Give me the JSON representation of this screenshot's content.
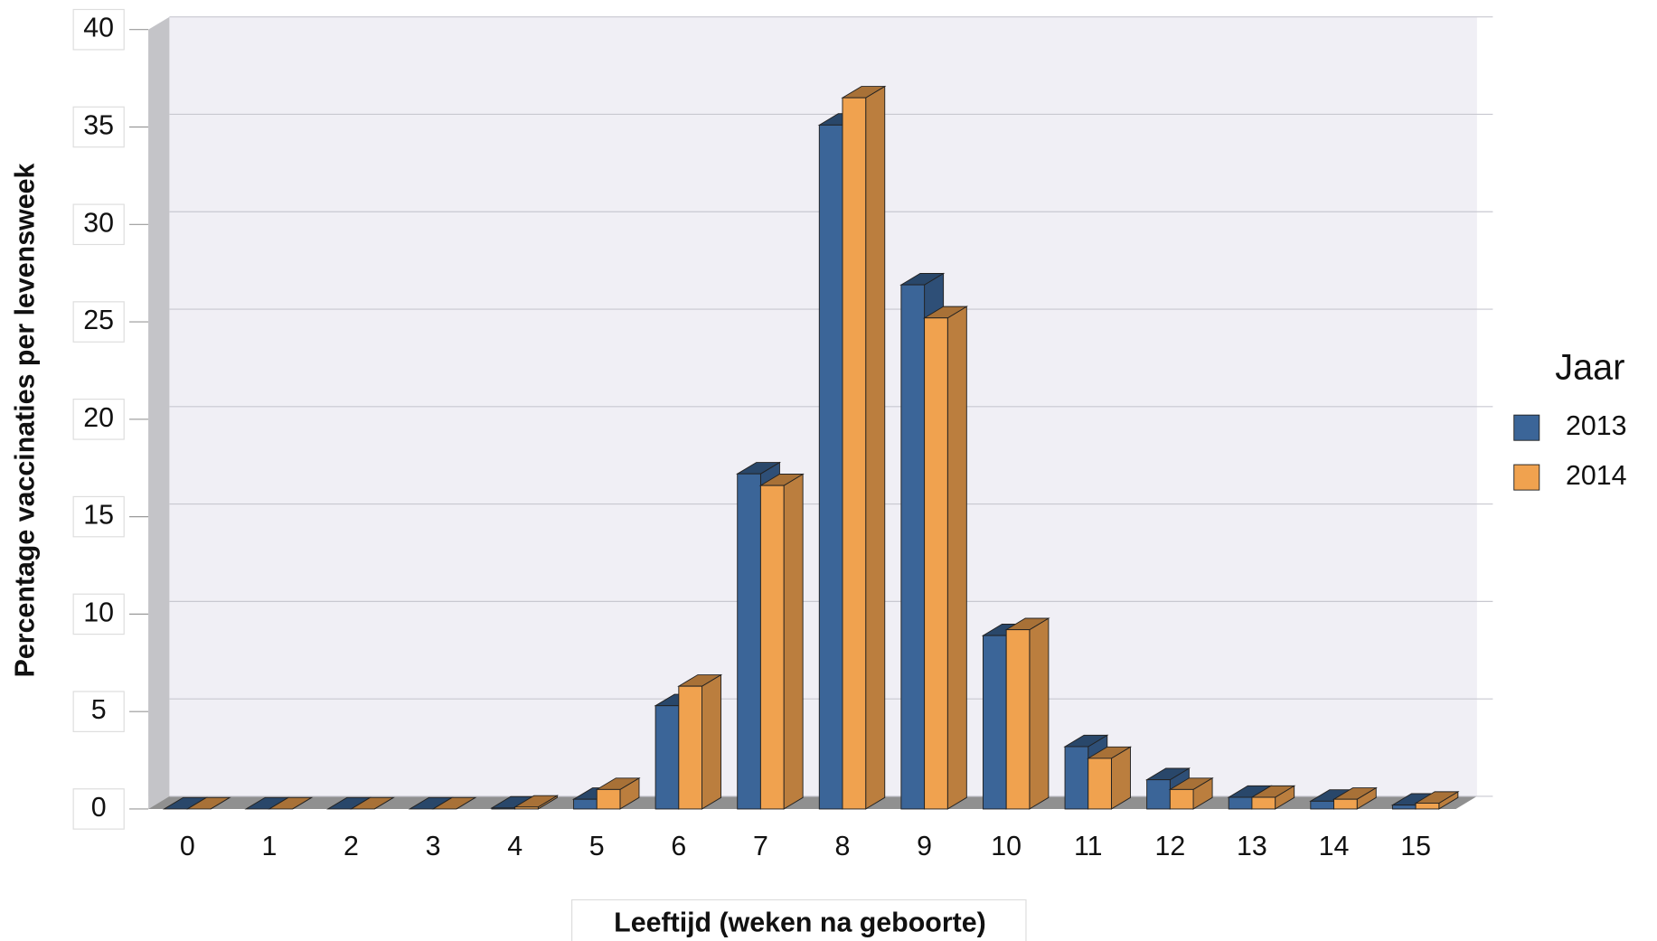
{
  "chart_data": {
    "type": "bar3d",
    "y_label": "Percentage vaccinaties per levensweek",
    "x_label": "Leeftijd (weken na geboorte)",
    "legend_title": "Jaar",
    "legend_position": "right",
    "grid": true,
    "categories": [
      "0",
      "1",
      "2",
      "3",
      "4",
      "5",
      "6",
      "7",
      "8",
      "9",
      "10",
      "11",
      "12",
      "13",
      "14",
      "15"
    ],
    "series": [
      {
        "name": "2013",
        "color": "#3b6598",
        "values": [
          0,
          0,
          0,
          0,
          0.05,
          0.5,
          5.3,
          17.2,
          35.1,
          26.9,
          8.9,
          3.2,
          1.5,
          0.6,
          0.4,
          0.2
        ]
      },
      {
        "name": "2014",
        "color": "#f0a24f",
        "values": [
          0,
          0,
          0,
          0,
          0.1,
          1.0,
          6.3,
          16.6,
          36.5,
          25.2,
          9.2,
          2.6,
          1.0,
          0.6,
          0.5,
          0.3
        ]
      }
    ],
    "ylim": [
      0,
      40
    ],
    "yticks": [
      0,
      5,
      10,
      15,
      20,
      25,
      30,
      35,
      40
    ]
  }
}
